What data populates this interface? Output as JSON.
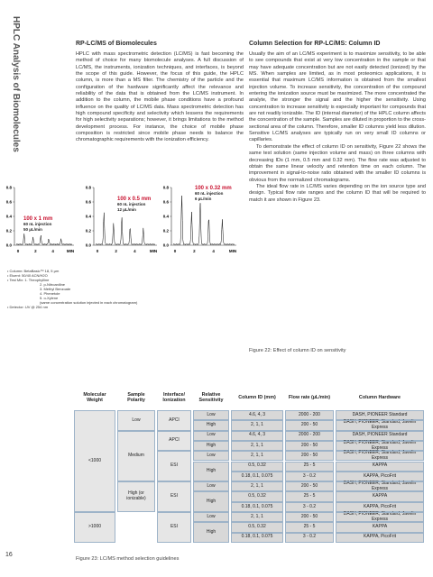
{
  "side_title": "HPLC Analysis of Biomolecules",
  "page_number": "16",
  "left_section": {
    "heading": "RP-LC/MS of Biomolecules",
    "paragraphs": [
      "HPLC with mass spectrometric detection (LC/MS) is fast becoming the method of choice for many biomolecule analyses. A full discussion of LC/MS, the instruments, ionization techniques, and interfaces, is beyond the scope of this guide. However, the focus of this guide, the HPLC column, is more than a MS filter. The chemistry of the particle and the configuration of the hardware significantly affect the relevance and reliability of the data that is obtained from the LC/MS instrument. In addition to the column, the mobile phase conditions have a profound influence on the quality of LC/MS data. Mass spectrometric detection has high compound specificity and selectivity which lessens the requirements for high selectivity separations; however, it brings limitations to the method development process. For instance, the choice of mobile phase composition is restricted since mobile phase needs to balance the chromatographic requirements with the ionization efficiency."
    ]
  },
  "right_section": {
    "heading": "Column Selection for RP-LC/MS: Column ID",
    "paragraphs": [
      "Usually the aim of an LC/MS experiment is to maximize sensitivity, to be able to see compounds that exist at very low concentration in the sample or that may have adequate concentration but are not easily detected (ionized) by the MS. When samples are limited, as in most proteomics applications, it is essential that maximum LC/MS information is obtained from the smallest injection volume. To increase sensitivity, the concentration of the compound entering the ionization source must be maximized. The more concentrated the analyte, the stronger the signal and the higher the sensitivity. Using concentration to increase sensitivity is especially important for compounds that are not readily ionizable. The ID (internal diameter) of the HPLC column affects the concentration of the sample. Samples are diluted in proportion to the cross-sectional area of the column. Therefore, smaller ID columns yield less dilution. Sensitive LC/MS analyses are typically run on very small ID columns or capillaries.",
      "To demonstrate the effect of column ID on sensitivity, Figure 22 shows the same test solution (same injection volume and mass) on three columns with decreasing IDs (1 mm, 0.5 mm and 0.32 mm). The flow rate was adjusted to obtain the same linear velocity and retention time on each column. The improvement in signal-to-noise ratio obtained with the smaller ID columns is obvious from the normalized chromatograms.",
      "The ideal flow rate in LC/MS varies depending on the ion source type and design. Typical flow rate ranges and the column ID that will be required to match it are shown in Figure 23."
    ]
  },
  "figure22": {
    "caption": "Figure 22: Effect of column ID on sensitivity",
    "chromatograms": [
      {
        "label": [
          "100 x 1 mm",
          "60 nL injection",
          "50 µL/min"
        ],
        "yticks": [
          "0.8",
          "0.6",
          "0.4",
          "0.2",
          "0.0"
        ],
        "xticks": [
          "0",
          "2",
          "4",
          "MIN"
        ]
      },
      {
        "label": [
          "100 x 0.5 mm",
          "60 nL injection",
          "12 µL/min"
        ],
        "yticks": [
          "0.8",
          "0.6",
          "0.4",
          "0.2",
          "0.0"
        ],
        "xticks": [
          "0",
          "2",
          "4",
          "MIN"
        ]
      },
      {
        "label": [
          "100 x 0.32 mm",
          "60 nL injection",
          "6 µL/min"
        ],
        "yticks": [
          "0.8",
          "0.6",
          "0.4",
          "0.2",
          "0.0"
        ],
        "xticks": [
          "0",
          "2",
          "4",
          "MIN"
        ]
      }
    ],
    "notes": [
      "• Column: BetaBasic™ 18, 5 µm",
      "• Eluent: 50/40 ACN/H2O",
      "• Test Mix: 1. Theophylline",
      "2. p-Nitroaniline",
      "3. Methyl Benzoate",
      "4. Phenetole",
      "5. o-Xylene",
      "(same concentration solution injected in each chromatogram)",
      "• Detector: UV @ 254 nm"
    ]
  },
  "figure23": {
    "caption": "Figure 23: LC/MS method selection guidelines",
    "headers": [
      "Molecular Weight",
      "Sample Polarity",
      "Interface/ Ionization",
      "Relative Sensitivity",
      "Column ID (mm)",
      "Flow rate (µL/min)",
      "Column Hardware"
    ],
    "molecular_weight": [
      "<1000",
      ">1000"
    ],
    "polarity": [
      "Low",
      "Medium",
      "High (or ionizable)"
    ],
    "interface": [
      "APCI",
      "APCI",
      "ESI",
      "ESI",
      "ESI"
    ],
    "rows": [
      [
        "Low",
        "4.6, 4, 3",
        "2000 - 200",
        "DASH, PIONEER Standard"
      ],
      [
        "High",
        "2, 1, 1",
        "200 - 50",
        "DASH, PIONEER, Standard, Javelin Express"
      ],
      [
        "Low",
        "4.6, 4, 3",
        "2000 - 200",
        "DASH, PIONEER Standard"
      ],
      [
        "High",
        "2, 1, 1",
        "200 - 50",
        "DASH, PIONEER, Standard, Javelin Express"
      ],
      [
        "Low",
        "2, 1, 1",
        "200 - 50",
        "DASH, PIONEER, Standard, Javelin Express"
      ],
      [
        "High",
        "0.5, 0.32",
        "25 - 5",
        "KAPPA"
      ],
      [
        null,
        "0.18, 0.1, 0.075",
        "3 - 0.2",
        "KAPPA, PicoFrit"
      ],
      [
        "Low",
        "2, 1, 1",
        "200 - 50",
        "DASH, PIONEER, Standard, Javelin Express"
      ],
      [
        "High",
        "0.5, 0.32",
        "25 - 5",
        "KAPPA"
      ],
      [
        null,
        "0.18, 0.1, 0.075",
        "3 - 0.2",
        "KAPPA, PicoFrit"
      ],
      [
        "Low",
        "2, 1, 1",
        "200 - 50",
        "DASH, PIONEER, Standard, Javelin Express"
      ],
      [
        "High",
        "0.5, 0.32",
        "25 - 5",
        "KAPPA"
      ],
      [
        null,
        "0.18, 0.1, 0.075",
        "3 - 0.2",
        "KAPPA, PicoFrit"
      ]
    ]
  }
}
